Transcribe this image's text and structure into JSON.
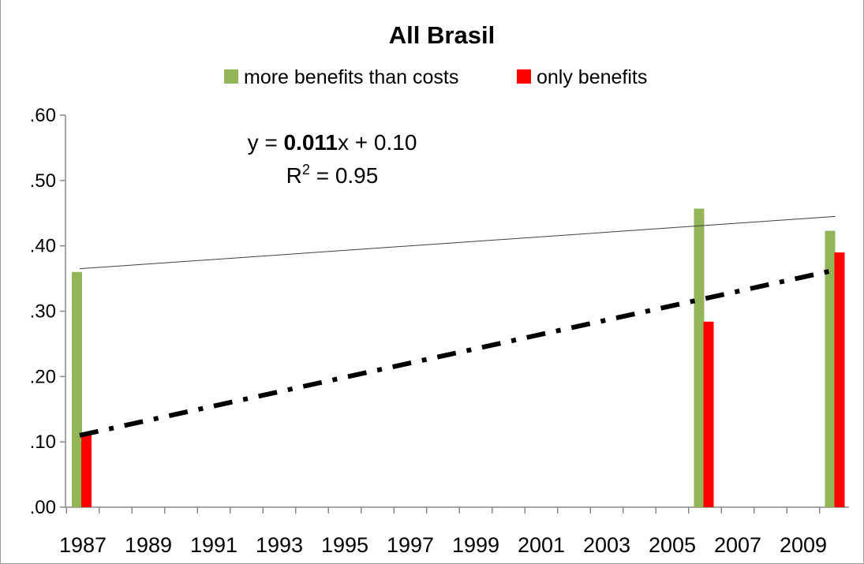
{
  "chart_data": {
    "type": "bar",
    "title": "All Brasil",
    "xlabel": "",
    "ylabel": "",
    "x_min": 1987,
    "x_max": 2010,
    "ylim": [
      0,
      0.6
    ],
    "y_ticks": [
      {
        "value": 0.0,
        "label": ".00"
      },
      {
        "value": 0.1,
        "label": ".10"
      },
      {
        "value": 0.2,
        "label": ".20"
      },
      {
        "value": 0.3,
        "label": ".30"
      },
      {
        "value": 0.4,
        "label": ".40"
      },
      {
        "value": 0.5,
        "label": ".50"
      },
      {
        "value": 0.6,
        "label": ".60"
      }
    ],
    "x_tick_labels": [
      "1987",
      "1989",
      "1991",
      "1993",
      "1995",
      "1997",
      "1999",
      "2001",
      "2003",
      "2005",
      "2007",
      "2009"
    ],
    "grid": false,
    "legend": {
      "placement": "top",
      "entries": [
        {
          "label": "more benefits than costs",
          "color": "#92b558"
        },
        {
          "label": "only benefits",
          "color": "#ff0000"
        }
      ]
    },
    "series": [
      {
        "name": "more benefits than costs",
        "color": "#92b558",
        "points": [
          {
            "x": 1987,
            "y": 0.36
          },
          {
            "x": 2006,
            "y": 0.457
          },
          {
            "x": 2010,
            "y": 0.423
          }
        ]
      },
      {
        "name": "only benefits",
        "color": "#ff0000",
        "points": [
          {
            "x": 1987,
            "y": 0.11
          },
          {
            "x": 2006,
            "y": 0.284
          },
          {
            "x": 2010,
            "y": 0.39
          }
        ]
      }
    ],
    "trendlines": [
      {
        "series": "more benefits than costs",
        "style": "thin-solid",
        "color": "#404040",
        "x_start": 1987,
        "y_start": 0.365,
        "x_end": 2010,
        "y_end": 0.445
      },
      {
        "series": "only benefits",
        "style": "thick-dash-dot",
        "color": "#000000",
        "x_start": 1987,
        "y_start": 0.11,
        "x_end": 2010,
        "y_end": 0.363
      }
    ],
    "annotation": {
      "eq_prefix": "y = ",
      "eq_coef": "0.011",
      "eq_suffix": "x + 0.10",
      "r2_label": "R",
      "r2_sup": "2",
      "r2_suffix": " = 0.95"
    }
  }
}
